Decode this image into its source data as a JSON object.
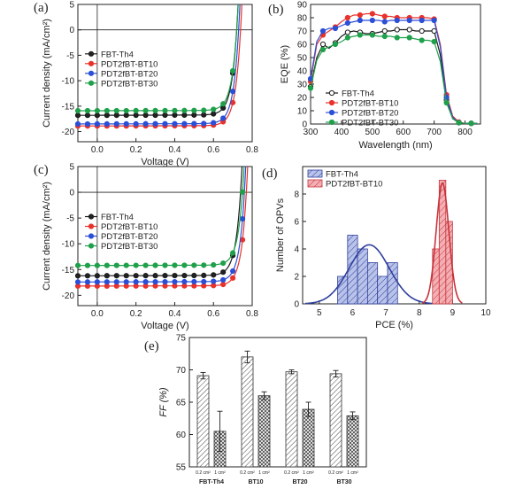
{
  "chart_data": [
    {
      "id": "a",
      "panel_label": "(a)",
      "type": "line",
      "xlabel": "Voltage (V)",
      "ylabel": "Current density (mA/cm²)",
      "xlim": [
        -0.1,
        0.8
      ],
      "ylim": [
        -22,
        5
      ],
      "xticks": [
        "0.0",
        "0.2",
        "0.4",
        "0.6",
        "0.8"
      ],
      "yticks": [
        "5",
        "0",
        "-5",
        "-10",
        "-15",
        "-20"
      ],
      "legend_position": "center-left",
      "series": [
        {
          "name": "FBT-Th4",
          "color": "#1a1a1a",
          "jsc": -16.8,
          "voc": 0.72
        },
        {
          "name": "PDT2fBT-BT10",
          "color": "#e8322b",
          "jsc": -18.9,
          "voc": 0.74
        },
        {
          "name": "PDT2fBT-BT20",
          "color": "#2b4fd6",
          "jsc": -18.5,
          "voc": 0.73
        },
        {
          "name": "PDT2fBT-BT30",
          "color": "#1fa04a",
          "jsc": -15.9,
          "voc": 0.72
        }
      ]
    },
    {
      "id": "b",
      "panel_label": "(b)",
      "type": "line",
      "xlabel": "Wavelength (nm)",
      "ylabel": "EQE (%)",
      "xlim": [
        300,
        850
      ],
      "ylim": [
        0,
        90
      ],
      "xticks": [
        "300",
        "400",
        "500",
        "600",
        "700",
        "800"
      ],
      "yticks": [
        "0",
        "10",
        "20",
        "30",
        "40",
        "50",
        "60",
        "70",
        "80",
        "90"
      ],
      "legend_position": "bottom-right",
      "series": [
        {
          "name": "FBT-Th4",
          "color": "#1a1a1a",
          "fill": "#ffffff",
          "x": [
            300,
            320,
            340,
            360,
            380,
            400,
            420,
            440,
            460,
            480,
            500,
            520,
            540,
            560,
            580,
            600,
            620,
            640,
            660,
            680,
            700,
            720,
            740,
            760,
            780,
            800,
            820,
            840
          ],
          "y": [
            28,
            50,
            60,
            57,
            61,
            66,
            69,
            70,
            69,
            68,
            68,
            69,
            70,
            70,
            71,
            71,
            71,
            70,
            70,
            70,
            70,
            52,
            18,
            4,
            1,
            0.5,
            0.5,
            0.5
          ]
        },
        {
          "name": "PDT2fBT-BT10",
          "color": "#e8322b",
          "fill": "#e8322b",
          "x": [
            300,
            320,
            340,
            360,
            380,
            400,
            420,
            440,
            460,
            480,
            500,
            520,
            540,
            560,
            580,
            600,
            620,
            640,
            660,
            680,
            700,
            720,
            740,
            760,
            780,
            800,
            820,
            840
          ],
          "y": [
            32,
            60,
            67,
            70,
            73,
            77,
            80,
            82,
            82,
            83,
            83,
            82,
            81,
            81,
            80,
            80,
            80,
            80,
            80,
            80,
            79,
            60,
            22,
            6,
            1.5,
            0.5,
            0.5,
            0.5
          ]
        },
        {
          "name": "PDT2fBT-BT20",
          "color": "#2b4fd6",
          "fill": "#2b4fd6",
          "x": [
            300,
            320,
            340,
            360,
            380,
            400,
            420,
            440,
            460,
            480,
            500,
            520,
            540,
            560,
            580,
            600,
            620,
            640,
            660,
            680,
            700,
            720,
            740,
            760,
            780,
            800,
            820,
            840
          ],
          "y": [
            34,
            62,
            70,
            72,
            72,
            74,
            76,
            77,
            78,
            78,
            78,
            78,
            77,
            78,
            78,
            78,
            78,
            78,
            78,
            78,
            78,
            58,
            20,
            5,
            1,
            0.5,
            0.5,
            0.5
          ]
        },
        {
          "name": "PDT2fBT-BT30",
          "color": "#1fa04a",
          "fill": "#1fa04a",
          "x": [
            300,
            320,
            340,
            360,
            380,
            400,
            420,
            440,
            460,
            480,
            500,
            520,
            540,
            560,
            580,
            600,
            620,
            640,
            660,
            680,
            700,
            720,
            740,
            760,
            780,
            800,
            820,
            840
          ],
          "y": [
            27,
            48,
            56,
            58,
            60,
            62,
            65,
            66,
            67,
            67,
            67,
            66,
            66,
            66,
            65,
            65,
            65,
            64,
            63,
            63,
            62,
            47,
            16,
            4,
            1,
            0.5,
            0.5,
            0.5
          ]
        }
      ]
    },
    {
      "id": "c",
      "panel_label": "(c)",
      "type": "line",
      "xlabel": "Voltage (V)",
      "ylabel": "Current density (mA/cm²)",
      "xlim": [
        -0.1,
        0.8
      ],
      "ylim": [
        -22,
        5
      ],
      "xticks": [
        "0.0",
        "0.2",
        "0.4",
        "0.6",
        "0.8"
      ],
      "yticks": [
        "5",
        "0",
        "-5",
        "-10",
        "-15",
        "-20"
      ],
      "legend_position": "center-left",
      "series": [
        {
          "name": "FBT-Th4",
          "color": "#1a1a1a",
          "jsc": -16.2,
          "voc": 0.74
        },
        {
          "name": "PDT2fBT-BT10",
          "color": "#e8322b",
          "jsc": -18.2,
          "voc": 0.77
        },
        {
          "name": "PDT2fBT-BT20",
          "color": "#2b4fd6",
          "jsc": -17.4,
          "voc": 0.76
        },
        {
          "name": "PDT2fBT-BT30",
          "color": "#1fa04a",
          "jsc": -14.2,
          "voc": 0.75
        }
      ]
    },
    {
      "id": "d",
      "panel_label": "(d)",
      "type": "bar",
      "xlabel": "PCE (%)",
      "ylabel": "Number of OPVs",
      "xlim": [
        4.5,
        10
      ],
      "ylim": [
        0,
        10
      ],
      "xticks": [
        "5",
        "6",
        "7",
        "8",
        "9",
        "10"
      ],
      "yticks": [
        "0",
        "2",
        "4",
        "6",
        "8"
      ],
      "legend_position": "top-left",
      "series": [
        {
          "name": "FBT-Th4",
          "color": "#2f3f9c",
          "fill": "#b9c3ea",
          "bin_centers": [
            5.7,
            6.0,
            6.3,
            6.6,
            6.9,
            7.2
          ],
          "counts": [
            2,
            5,
            4,
            3,
            2,
            3
          ],
          "gaussian": {
            "mu": 6.5,
            "sigma": 0.6,
            "peak": 4.3
          }
        },
        {
          "name": "PDT2fBT-BT10",
          "color": "#c8323a",
          "fill": "#f3b0b4",
          "bin_centers": [
            8.5,
            8.7,
            8.9
          ],
          "counts": [
            4,
            9,
            6
          ],
          "gaussian": {
            "mu": 8.7,
            "sigma": 0.19,
            "peak": 8.8
          }
        }
      ]
    },
    {
      "id": "e",
      "panel_label": "(e)",
      "type": "bar",
      "xlabel": "",
      "ylabel": "FF (%)",
      "ylim": [
        55,
        75
      ],
      "yticks": [
        "55",
        "60",
        "65",
        "70",
        "75"
      ],
      "groups": [
        "FBT-Th4",
        "BT10",
        "BT20",
        "BT30"
      ],
      "bar_labels": [
        "0.2 cm²",
        "1 cm²"
      ],
      "series": [
        {
          "name": "0.2 cm²",
          "values": [
            69.1,
            72.0,
            69.7,
            69.4
          ],
          "errors": [
            0.5,
            0.9,
            0.3,
            0.5
          ]
        },
        {
          "name": "1 cm²",
          "values": [
            60.5,
            66.0,
            63.9,
            62.9
          ],
          "errors": [
            3.1,
            0.6,
            1.1,
            0.6
          ]
        }
      ]
    }
  ]
}
